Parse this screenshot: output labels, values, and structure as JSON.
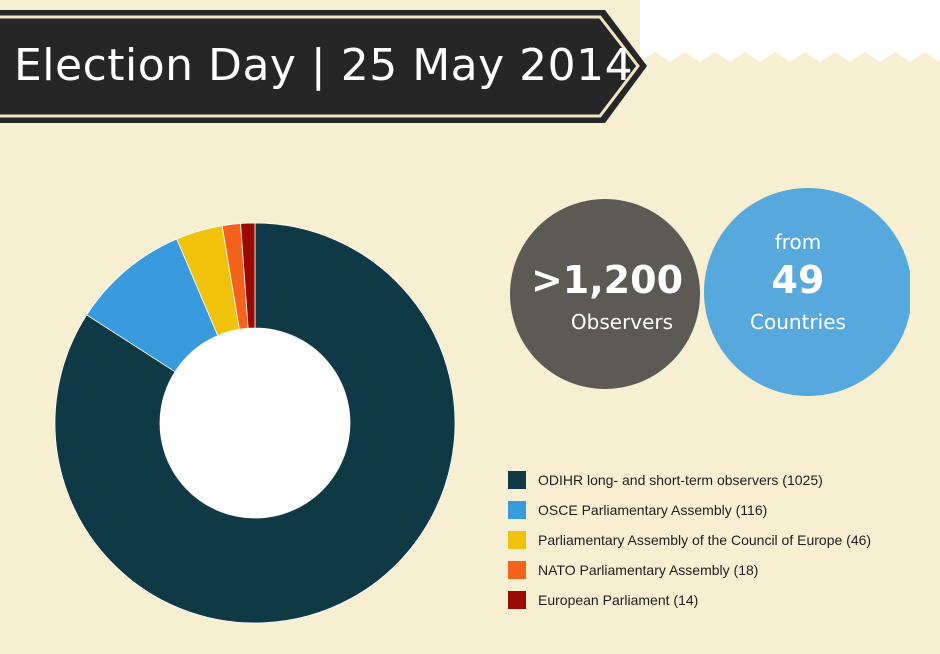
{
  "header": {
    "title": "Election Day | 25 May 2014"
  },
  "stats": {
    "observers_number": ">1,200",
    "observers_label": "Observers",
    "countries_prefix": "from",
    "countries_number": "49",
    "countries_label": "Countries"
  },
  "colors": {
    "background": "#f7efd2",
    "banner": "#262626",
    "observers_circle": "#5c5a52",
    "countries_circle": "#4ea3dd"
  },
  "chart_data": {
    "type": "pie",
    "donut": true,
    "title": "",
    "categories": [
      "ODIHR long- and short-term observers",
      "OSCE Parliamentary Assembly",
      "Parliamentary Assembly of the Council of Europe",
      "NATO Parliamentary Assembly",
      "European Parliament"
    ],
    "values": [
      1025,
      116,
      46,
      18,
      14
    ],
    "colors": [
      "#0f3945",
      "#3a9ade",
      "#f0c20c",
      "#f5621c",
      "#9a0a00"
    ],
    "legend_labels": [
      "ODIHR long- and short-term observers (1025)",
      "OSCE Parliamentary Assembly (116)",
      "Parliamentary Assembly of the Council of Europe (46)",
      "NATO Parliamentary Assembly (18)",
      "European Parliament (14)"
    ],
    "legend_position": "bottom-right"
  }
}
